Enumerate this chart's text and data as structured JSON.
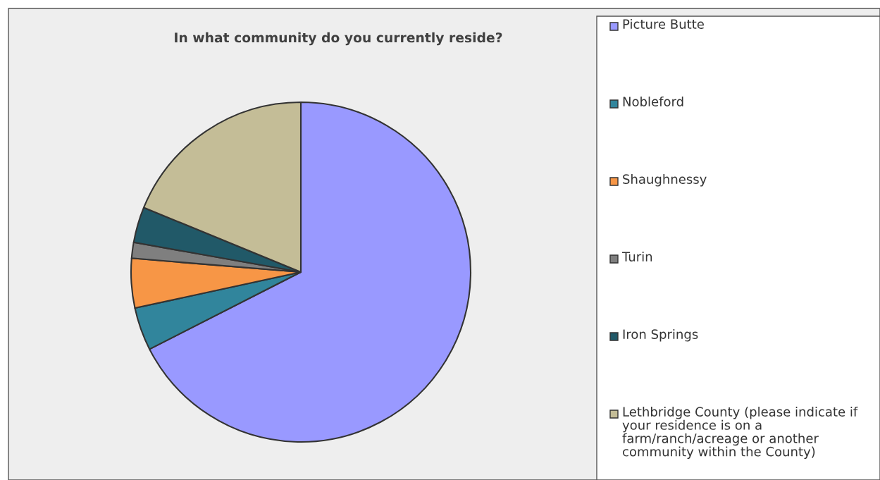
{
  "chart_data": {
    "type": "pie",
    "title": "In what community do you currently reside?",
    "categories": [
      "Picture Butte",
      "Nobleford",
      "Shaughnessy",
      "Turin",
      "Iron Springs",
      "Lethbridge County (please indicate if your residence is on a farm/ranch/acreage or another community within the County)"
    ],
    "values": [
      67.5,
      4.1,
      4.7,
      1.5,
      3.4,
      18.8
    ],
    "colors": [
      "#9999ff",
      "#31859c",
      "#f79646",
      "#7f7f7f",
      "#215968",
      "#c4bd97"
    ],
    "legend": "right"
  }
}
